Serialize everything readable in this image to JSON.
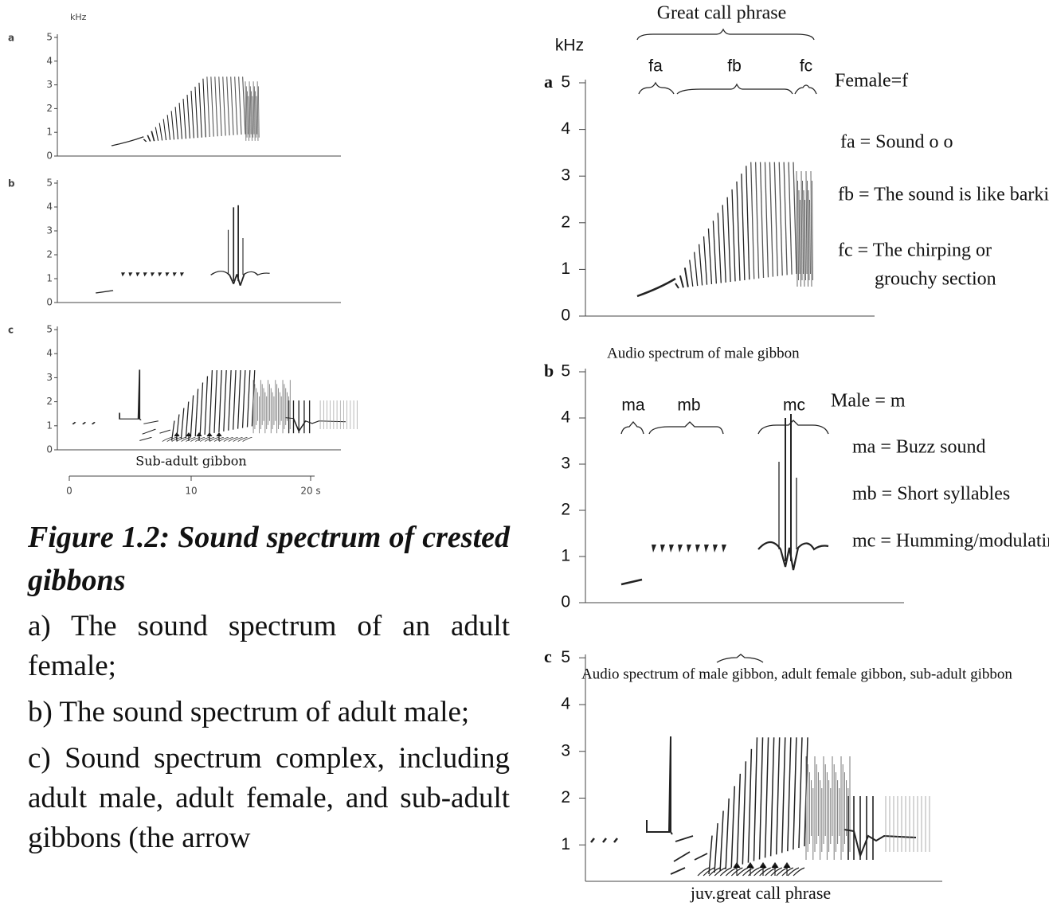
{
  "left_figure": {
    "unit": "kHz",
    "panels": [
      {
        "label": "a",
        "yticks": [
          0,
          1,
          2,
          3,
          4,
          5
        ]
      },
      {
        "label": "b",
        "yticks": [
          0,
          1,
          2,
          3,
          4,
          5
        ]
      },
      {
        "label": "c",
        "yticks": [
          0,
          1,
          2,
          3,
          4,
          5
        ]
      }
    ],
    "annotation": "Sub-adult gibbon",
    "xticks": [
      "0",
      "10",
      "20 s"
    ]
  },
  "caption": {
    "title": "Figure 1.2: Sound spectrum of crested gibbons",
    "items": [
      "a) The sound spectrum of an adult female;",
      "b) The sound spectrum of adult male;",
      "c) Sound spectrum complex, including adult male, adult female, and sub-adult gibbons (the arrow"
    ]
  },
  "right_figure": {
    "unit": "kHz",
    "panels": [
      {
        "label": "a",
        "title": "Great call phrase",
        "yticks": [
          0,
          1,
          2,
          3,
          4,
          5
        ],
        "segments": [
          "fa",
          "fb",
          "fc"
        ],
        "legend": [
          "Female=f",
          "fa = Sound o o",
          "fb = The sound is like barking",
          "fc = The chirping or",
          "grouchy section"
        ]
      },
      {
        "label": "b",
        "title": "Audio spectrum of male gibbon",
        "yticks": [
          0,
          1,
          2,
          3,
          4,
          5
        ],
        "segments": [
          "ma",
          "mb",
          "mc"
        ],
        "legend": [
          "Male = m",
          "ma = Buzz sound",
          "mb = Short syllables",
          "mc = Humming/modulating"
        ]
      },
      {
        "label": "c",
        "title": "Audio spectrum of male gibbon, adult female gibbon, sub-adult gibbon",
        "yticks": [
          1,
          2,
          3,
          4,
          5
        ],
        "annotation": "juv.great call phrase"
      }
    ]
  }
}
